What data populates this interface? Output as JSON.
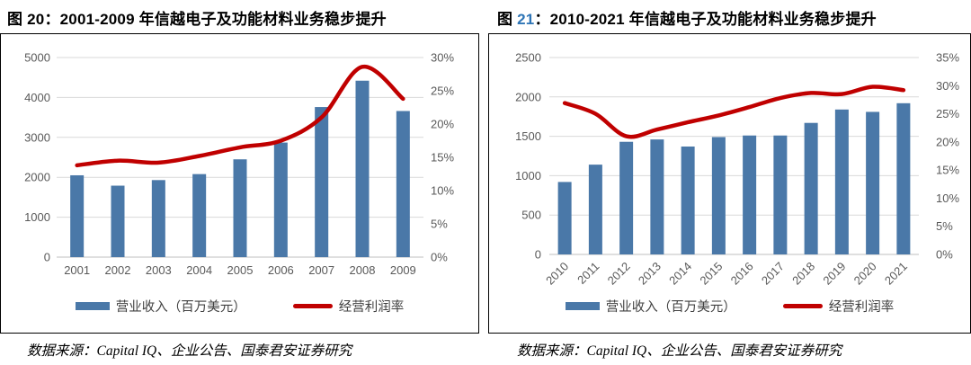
{
  "source_note": "数据来源：Capital IQ、企业公告、国泰君安证券研究",
  "chart_data": [
    {
      "type": "bar",
      "subtype": "bar+line combo",
      "fig_label": "图 ",
      "fig_num": "20",
      "fig_num_color": "#000000",
      "title_rest": "：2001-2009 年信越电子及功能材料业务稳步提升",
      "title": "图 20：2001-2009 年信越电子及功能材料业务稳步提升",
      "categories": [
        "2001",
        "2002",
        "2003",
        "2004",
        "2005",
        "2006",
        "2007",
        "2008",
        "2009"
      ],
      "series": [
        {
          "name": "营业收入（百万美元）",
          "type": "bar",
          "axis": "left",
          "color": "#4A78A8",
          "values": [
            2050,
            1790,
            1930,
            2080,
            2450,
            2870,
            3760,
            4420,
            3660
          ]
        },
        {
          "name": "经营利润率",
          "type": "line",
          "axis": "right",
          "color": "#C00000",
          "values": [
            13.8,
            14.5,
            14.2,
            15.2,
            16.5,
            17.5,
            21.0,
            28.6,
            23.8
          ]
        }
      ],
      "left_axis": {
        "min": 0,
        "max": 5000,
        "ticks": [
          "0",
          "1000",
          "2000",
          "3000",
          "4000",
          "5000"
        ]
      },
      "right_axis": {
        "min": 0,
        "max": 30,
        "ticks": [
          "0%",
          "5%",
          "10%",
          "15%",
          "20%",
          "25%",
          "30%"
        ]
      },
      "x_label_rotation": 0,
      "grid": true,
      "legend_position": "bottom"
    },
    {
      "type": "bar",
      "subtype": "bar+line combo",
      "fig_label": "图 ",
      "fig_num": "21",
      "fig_num_color": "#2E75B6",
      "title_rest": "：2010-2021 年信越电子及功能材料业务稳步提升",
      "title": "图 21：2010-2021 年信越电子及功能材料业务稳步提升",
      "categories": [
        "2010",
        "2011",
        "2012",
        "2013",
        "2014",
        "2015",
        "2016",
        "2017",
        "2018",
        "2019",
        "2020",
        "2021"
      ],
      "series": [
        {
          "name": "营业收入（百万美元）",
          "type": "bar",
          "axis": "left",
          "color": "#4A78A8",
          "values": [
            920,
            1140,
            1430,
            1460,
            1370,
            1490,
            1510,
            1510,
            1670,
            1840,
            1810,
            1920
          ]
        },
        {
          "name": "经营利润率",
          "type": "line",
          "axis": "right",
          "color": "#C00000",
          "values": [
            26.9,
            25.0,
            21.0,
            22.2,
            23.5,
            24.7,
            26.2,
            27.8,
            28.7,
            28.5,
            29.8,
            29.2
          ]
        }
      ],
      "left_axis": {
        "min": 0,
        "max": 2500,
        "ticks": [
          "0",
          "500",
          "1000",
          "1500",
          "2000",
          "2500"
        ]
      },
      "right_axis": {
        "min": 0,
        "max": 35,
        "ticks": [
          "0%",
          "5%",
          "10%",
          "15%",
          "20%",
          "25%",
          "30%",
          "35%"
        ]
      },
      "x_label_rotation": -45,
      "grid": true,
      "legend_position": "bottom"
    }
  ],
  "colors": {
    "bar": "#4A78A8",
    "line": "#C00000",
    "gridline": "#D9D9D9",
    "axis_text": "#595959",
    "fig21_number": "#2E75B6"
  }
}
